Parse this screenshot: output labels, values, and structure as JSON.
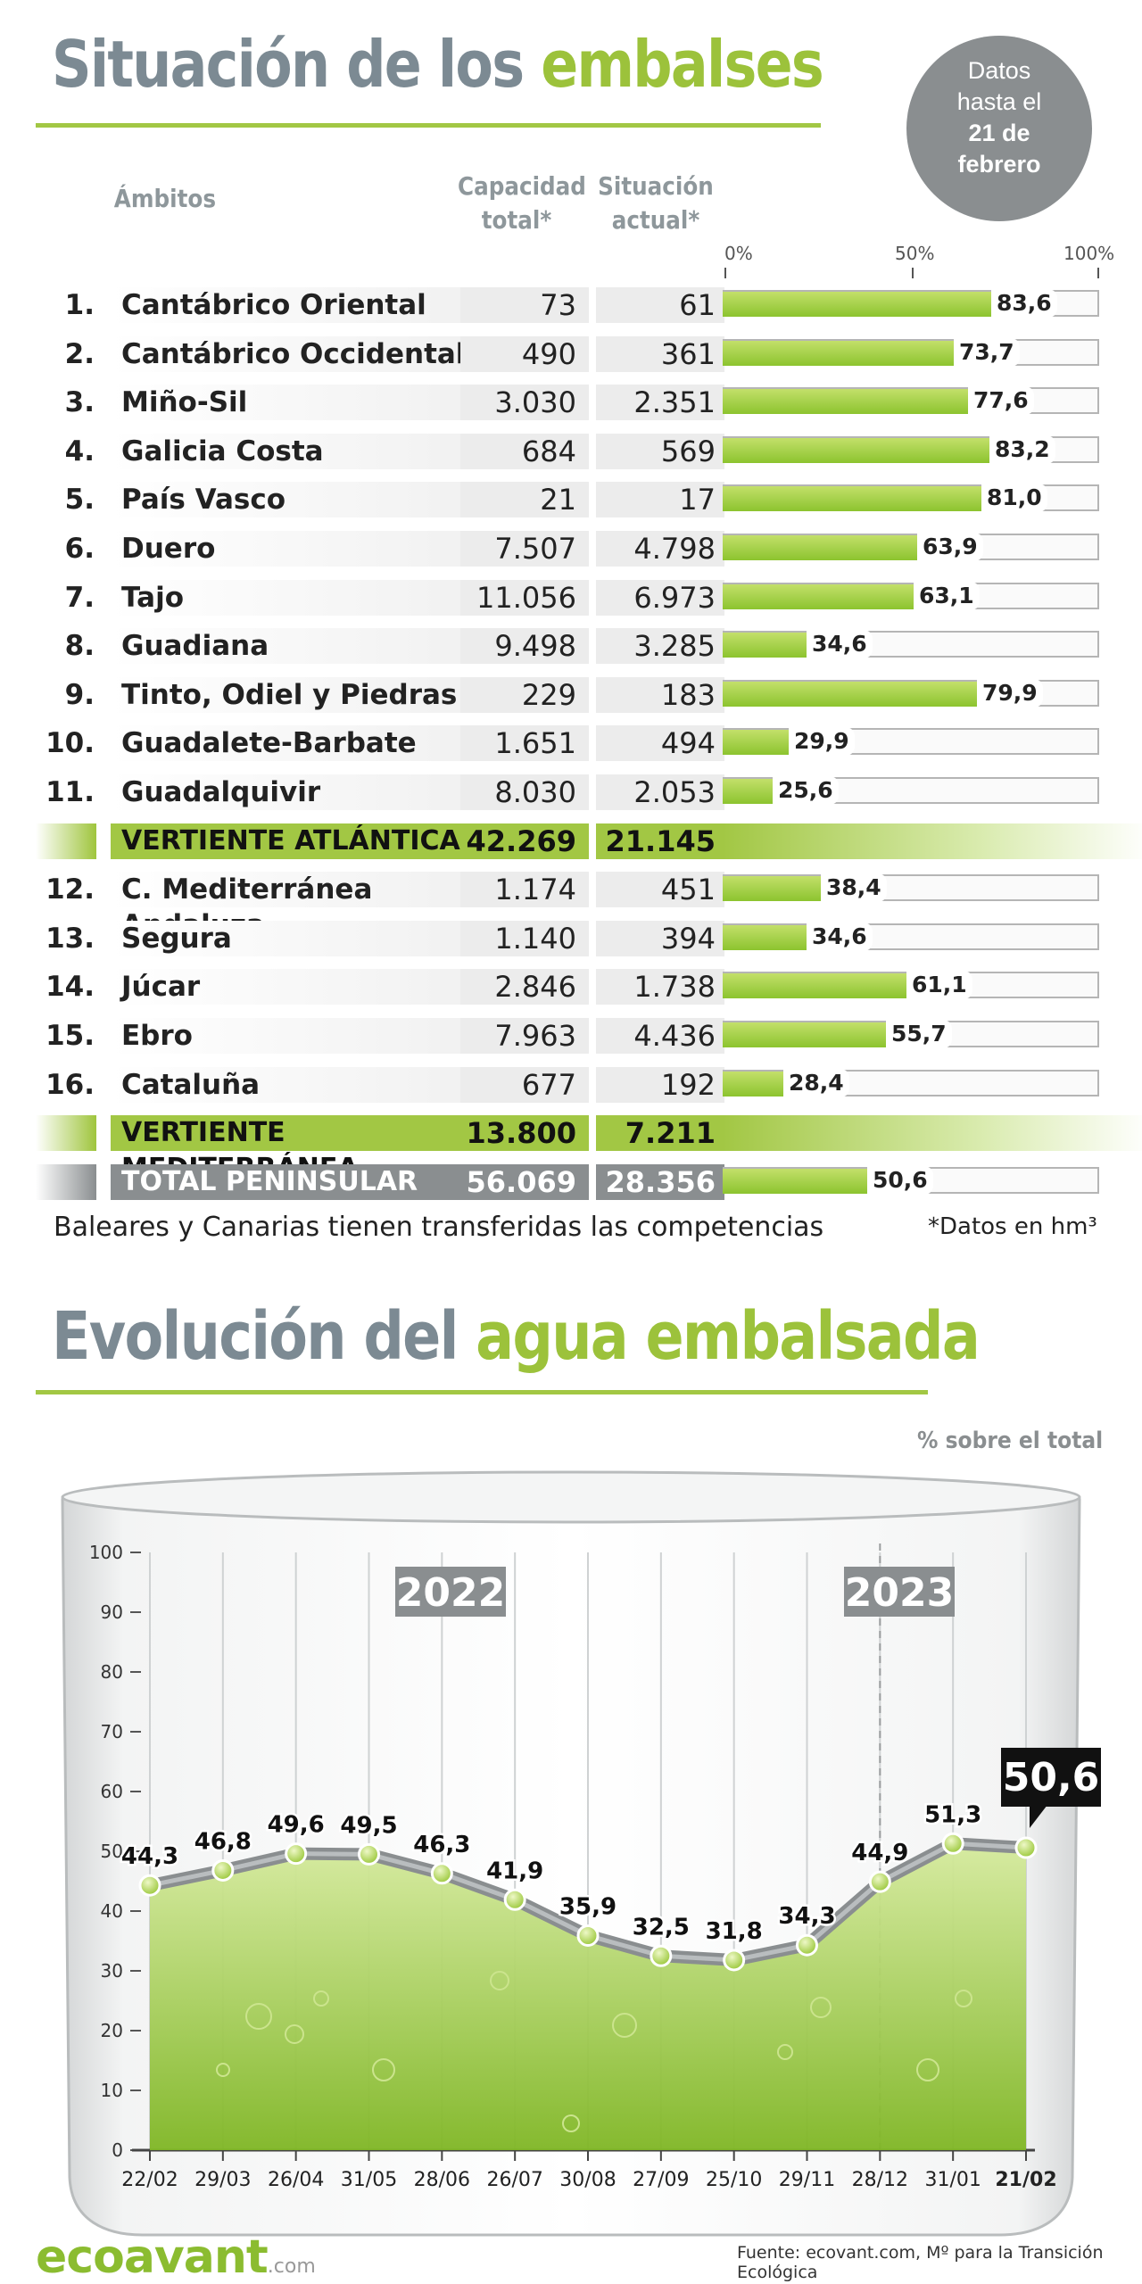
{
  "header": {
    "title_part1": "Situación de los",
    "title_part2": "embalses",
    "badge_line1": "Datos",
    "badge_line2": "hasta el",
    "badge_line3": "21 de",
    "badge_line4": "febrero"
  },
  "table": {
    "col_name": "Ámbitos",
    "col_cap_l1": "Capacidad",
    "col_cap_l2": "total*",
    "col_act_l1": "Situación",
    "col_act_l2": "actual*",
    "scale_0": "0%",
    "scale_50": "50%",
    "scale_100": "100%",
    "rows": [
      {
        "num": "1.",
        "name": "Cantábrico Oriental",
        "cap": "73",
        "act": "61",
        "pct": 83.6,
        "pct_label": "83,6"
      },
      {
        "num": "2.",
        "name": "Cantábrico Occidental",
        "cap": "490",
        "act": "361",
        "pct": 73.7,
        "pct_label": "73,7"
      },
      {
        "num": "3.",
        "name": "Miño-Sil",
        "cap": "3.030",
        "act": "2.351",
        "pct": 77.6,
        "pct_label": "77,6"
      },
      {
        "num": "4.",
        "name": "Galicia Costa",
        "cap": "684",
        "act": "569",
        "pct": 83.2,
        "pct_label": "83,2"
      },
      {
        "num": "5.",
        "name": "País Vasco",
        "cap": "21",
        "act": "17",
        "pct": 81.0,
        "pct_label": "81,0"
      },
      {
        "num": "6.",
        "name": "Duero",
        "cap": "7.507",
        "act": "4.798",
        "pct": 63.9,
        "pct_label": "63,9"
      },
      {
        "num": "7.",
        "name": "Tajo",
        "cap": "11.056",
        "act": "6.973",
        "pct": 63.1,
        "pct_label": "63,1"
      },
      {
        "num": "8.",
        "name": "Guadiana",
        "cap": "9.498",
        "act": "3.285",
        "pct": 34.6,
        "pct_label": "34,6"
      },
      {
        "num": "9.",
        "name": "Tinto, Odiel y Piedras",
        "cap": "229",
        "act": "183",
        "pct": 79.9,
        "pct_label": "79,9"
      },
      {
        "num": "10.",
        "name": "Guadalete-Barbate",
        "cap": "1.651",
        "act": "494",
        "pct": 29.9,
        "pct_label": "29,9"
      },
      {
        "num": "11.",
        "name": "Guadalquivir",
        "cap": "8.030",
        "act": "2.053",
        "pct": 25.6,
        "pct_label": "25,6"
      },
      {
        "kind": "vert",
        "name": "VERTIENTE ATLÁNTICA",
        "cap": "42.269",
        "act": "21.145"
      },
      {
        "num": "12.",
        "name": "C. Mediterránea Andaluza",
        "cap": "1.174",
        "act": "451",
        "pct": 38.4,
        "pct_label": "38,4"
      },
      {
        "num": "13.",
        "name": "Segura",
        "cap": "1.140",
        "act": "394",
        "pct": 34.6,
        "pct_label": "34,6"
      },
      {
        "num": "14.",
        "name": "Júcar",
        "cap": "2.846",
        "act": "1.738",
        "pct": 61.1,
        "pct_label": "61,1"
      },
      {
        "num": "15.",
        "name": "Ebro",
        "cap": "7.963",
        "act": "4.436",
        "pct": 55.7,
        "pct_label": "55,7"
      },
      {
        "num": "16.",
        "name": "Cataluña",
        "cap": "677",
        "act": "192",
        "pct": 28.4,
        "pct_label": "28,4"
      },
      {
        "kind": "vert",
        "name": "VERTIENTE MEDITERRÁNEA",
        "cap": "13.800",
        "act": "7.211"
      },
      {
        "kind": "total",
        "name": "TOTAL PENINSULAR",
        "cap": "56.069",
        "act": "28.356",
        "pct": 50.6,
        "pct_label": "50,6"
      }
    ],
    "note": "Baleares y Canarias tienen transferidas las competencias",
    "unit_note": "*Datos en hm³"
  },
  "evolution": {
    "title_part1": "Evolución del",
    "title_part2": "agua embalsada",
    "pct_note": "% sobre el total"
  },
  "chart_data": {
    "type": "area",
    "categories": [
      "22/02",
      "29/03",
      "26/04",
      "31/05",
      "28/06",
      "26/07",
      "30/08",
      "27/09",
      "25/10",
      "29/11",
      "28/12",
      "31/01",
      "21/02"
    ],
    "values": [
      44.3,
      46.8,
      49.6,
      49.5,
      46.3,
      41.9,
      35.9,
      32.5,
      31.8,
      34.3,
      44.9,
      51.3,
      50.6
    ],
    "value_labels": [
      "44,3",
      "46,8",
      "49,6",
      "49,5",
      "46,3",
      "41,9",
      "35,9",
      "32,5",
      "31,8",
      "34,3",
      "44,9",
      "51,3",
      "50,6"
    ],
    "highlight_label": "50,6",
    "year_labels": [
      "2022",
      "2023"
    ],
    "y_ticks": [
      "0",
      "10",
      "20",
      "30",
      "40",
      "50",
      "60",
      "70",
      "80",
      "90",
      "100"
    ],
    "ylim": [
      0,
      100
    ],
    "grid": true,
    "colors": {
      "fill": "#a2c744",
      "line": "#8a8e90",
      "point": "#c5e06c"
    }
  },
  "footer": {
    "logo_text": "ecoavant",
    "logo_domain": ".com",
    "source": "Fuente: ecovant.com, Mº para la Transición Ecológica"
  }
}
